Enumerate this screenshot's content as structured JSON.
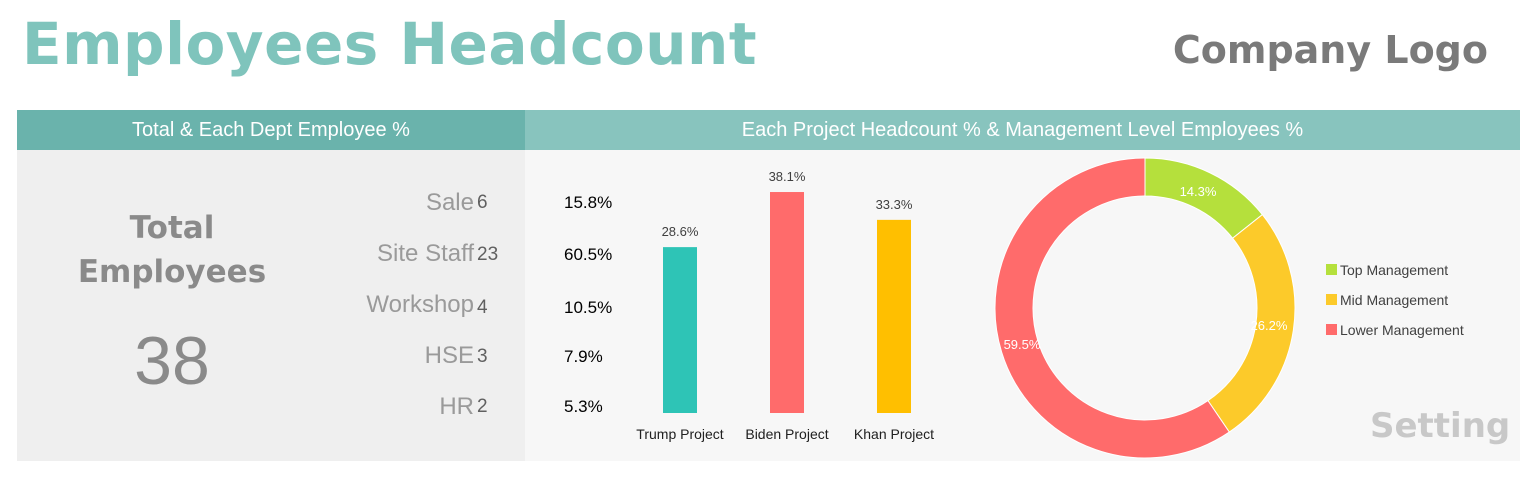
{
  "header": {
    "title": "Employees Headcount",
    "logo": "Company Logo"
  },
  "sections": {
    "left_title": "Total & Each Dept Employee %",
    "right_title": "Each Project Headcount % & Management Level Employees %"
  },
  "total": {
    "label_line1": "Total",
    "label_line2": "Employees",
    "value": "38"
  },
  "departments": [
    {
      "name": "Sale",
      "count": "6",
      "pct": "15.8%"
    },
    {
      "name": "Site Staff",
      "count": "23",
      "pct": "60.5%"
    },
    {
      "name": "Workshop",
      "count": "4",
      "pct": "10.5%"
    },
    {
      "name": "HSE",
      "count": "3",
      "pct": "7.9%"
    },
    {
      "name": "HR",
      "count": "2",
      "pct": "5.3%"
    }
  ],
  "setting_label": "Setting",
  "chart_data": [
    {
      "type": "bar",
      "title": "",
      "categories": [
        "Trump Project",
        "Biden Project",
        "Khan Project"
      ],
      "values": [
        28.6,
        38.1,
        33.3
      ],
      "labels": [
        "28.6%",
        "38.1%",
        "33.3%"
      ],
      "colors": [
        "#2ec4b6",
        "#ff6b6b",
        "#ffbf00"
      ],
      "ylim": [
        0,
        40
      ],
      "grid": false,
      "xlabel": "",
      "ylabel": ""
    },
    {
      "type": "pie",
      "variant": "donut",
      "title": "",
      "categories": [
        "Top Management",
        "Mid Management",
        "Lower Management"
      ],
      "values": [
        14.3,
        26.2,
        59.5
      ],
      "labels": [
        "14.3%",
        "26.2%",
        "59.5%"
      ],
      "colors": [
        "#b5e03c",
        "#fcca2a",
        "#ff6b6b"
      ],
      "legend": "right"
    }
  ]
}
